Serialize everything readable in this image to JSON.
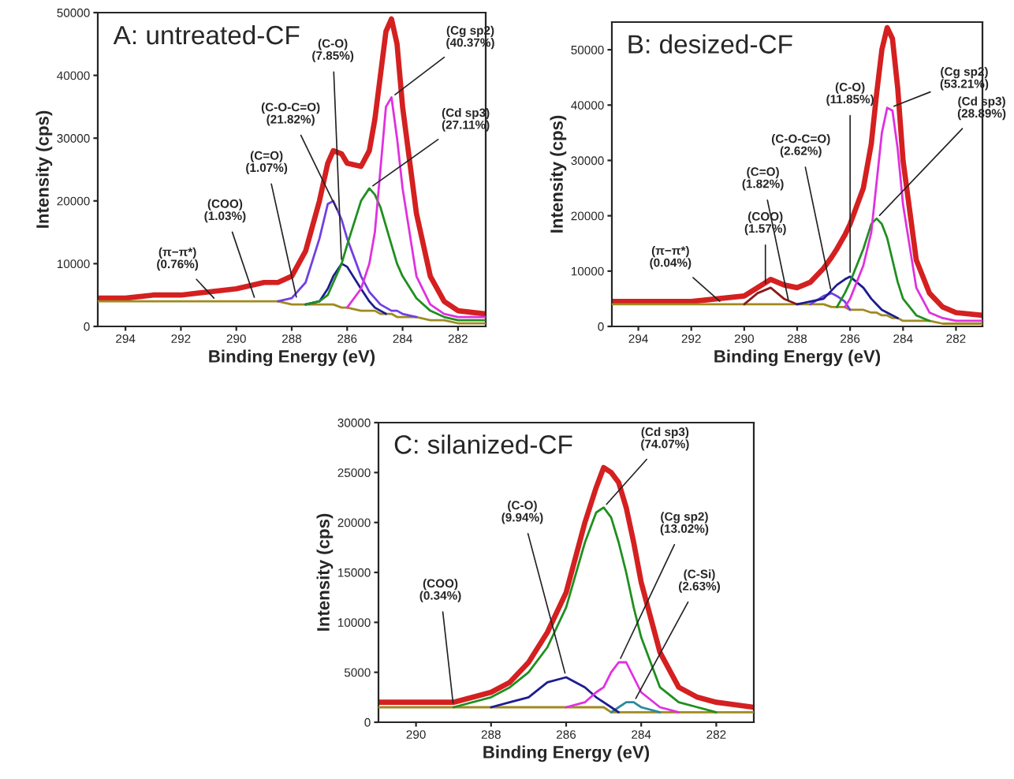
{
  "chart_data": [
    {
      "type": "line",
      "title": "A: untreated-CF",
      "xlabel": "Binding Energy (eV)",
      "ylabel": "Intensity (cps)",
      "x": [
        295,
        294,
        293,
        292,
        291,
        290,
        289.5,
        289,
        288.5,
        288,
        287.5,
        287,
        286.7,
        286.5,
        286.2,
        286,
        285.5,
        285.2,
        285,
        284.8,
        284.6,
        284.4,
        284.2,
        284,
        283.5,
        283,
        282.5,
        282,
        281
      ],
      "xlim": [
        295,
        281
      ],
      "xticks": [
        294,
        292,
        290,
        288,
        286,
        284,
        282
      ],
      "ylim": [
        0,
        50000
      ],
      "yticks": [
        0,
        10000,
        20000,
        30000,
        40000,
        50000
      ],
      "series": [
        {
          "color": "#a08a20",
          "values": [
            4000,
            4000,
            4000,
            4000,
            4000,
            4000,
            4000,
            4000,
            4000,
            3500,
            3500,
            3500,
            3500,
            3500,
            3000,
            3000,
            2500,
            2500,
            2500,
            2000,
            2000,
            2000,
            1500,
            1500,
            1500,
            1000,
            1000,
            500,
            500
          ]
        },
        {
          "color": "#7040e0",
          "values": [
            null,
            null,
            null,
            null,
            null,
            null,
            null,
            null,
            4000,
            4500,
            7000,
            14000,
            19500,
            20000,
            17000,
            14000,
            8000,
            5500,
            4500,
            3500,
            3000,
            2500,
            2500,
            2000,
            1500,
            null,
            null,
            null,
            null
          ]
        },
        {
          "color": "#1c1c90",
          "values": [
            null,
            null,
            null,
            null,
            null,
            null,
            null,
            null,
            null,
            null,
            3500,
            4000,
            6000,
            8000,
            10000,
            9500,
            6000,
            4000,
            3000,
            2500,
            2000,
            null,
            null,
            null,
            null,
            null,
            null,
            null,
            null
          ]
        },
        {
          "color": "#1f8f1f",
          "values": [
            null,
            null,
            null,
            null,
            null,
            null,
            null,
            null,
            null,
            null,
            3500,
            4000,
            5000,
            7000,
            10000,
            13000,
            20000,
            22000,
            21000,
            19000,
            16000,
            13000,
            10000,
            8000,
            4500,
            2500,
            1500,
            1000,
            1000
          ]
        },
        {
          "color": "#e030e0",
          "values": [
            null,
            null,
            null,
            null,
            null,
            null,
            null,
            null,
            null,
            null,
            null,
            null,
            null,
            null,
            null,
            3000,
            6000,
            10000,
            15000,
            25000,
            35000,
            36500,
            30000,
            22000,
            8000,
            3500,
            2000,
            1500,
            1500
          ]
        },
        {
          "color": "#d42020",
          "values": [
            4500,
            4500,
            5000,
            5000,
            5500,
            6000,
            6500,
            7000,
            7000,
            8000,
            12000,
            20000,
            26000,
            28000,
            27500,
            26000,
            25500,
            28000,
            33000,
            40000,
            47000,
            49000,
            45000,
            35000,
            18000,
            8000,
            4000,
            2500,
            2000
          ]
        }
      ],
      "annotations": [
        {
          "text": "(π−π*)\n(0.76%)",
          "x": 290.7,
          "y": 4000
        },
        {
          "text": "(COO)\n(1.03%)",
          "x": 289.3,
          "y": 4000
        },
        {
          "text": "(C=O)\n(1.07%)",
          "x": 287.8,
          "y": 4000
        },
        {
          "text": "(C-O-C=O)\n(21.82%)",
          "x": 286.3,
          "y": 18000
        },
        {
          "text": "(C-O)\n(7.85%)",
          "x": 286.2,
          "y": 10000
        },
        {
          "text": "(Cg sp2)\n(40.37%)",
          "x": 284.4,
          "y": 36500
        },
        {
          "text": "(Cd sp3)\n(27.11%)",
          "x": 285.2,
          "y": 22000
        }
      ]
    },
    {
      "type": "line",
      "title": "B: desized-CF",
      "xlabel": "Binding Energy (eV)",
      "ylabel": "Intensity (cps)",
      "x": [
        295,
        294,
        293,
        292,
        291,
        290,
        289.5,
        289,
        288.5,
        288,
        287.5,
        287,
        286.7,
        286.5,
        286.2,
        286,
        285.5,
        285.2,
        285,
        284.8,
        284.6,
        284.4,
        284.2,
        284,
        283.5,
        283,
        282.5,
        282,
        281
      ],
      "xlim": [
        295,
        281
      ],
      "xticks": [
        294,
        292,
        290,
        288,
        286,
        284,
        282
      ],
      "ylim": [
        0,
        55000
      ],
      "yticks": [
        0,
        10000,
        20000,
        30000,
        40000,
        50000
      ],
      "series": [
        {
          "color": "#a08a20",
          "values": [
            4000,
            4000,
            4000,
            4000,
            4000,
            4000,
            4000,
            4000,
            4000,
            4000,
            4000,
            4000,
            3500,
            3500,
            3500,
            3000,
            3000,
            2500,
            2500,
            2000,
            2000,
            1500,
            1500,
            1000,
            1000,
            1000,
            500,
            500,
            500
          ]
        },
        {
          "color": "#8b1a1a",
          "values": [
            null,
            null,
            null,
            null,
            null,
            4000,
            6000,
            7000,
            5000,
            4000,
            null,
            null,
            null,
            null,
            null,
            null,
            null,
            null,
            null,
            null,
            null,
            null,
            null,
            null,
            null,
            null,
            null,
            null,
            null
          ]
        },
        {
          "color": "#7040e0",
          "values": [
            null,
            null,
            null,
            null,
            null,
            null,
            null,
            null,
            null,
            null,
            4000,
            5500,
            6000,
            5500,
            4500,
            3000,
            null,
            null,
            null,
            null,
            null,
            null,
            null,
            null,
            null,
            null,
            null,
            null,
            null
          ]
        },
        {
          "color": "#1c1c90",
          "values": [
            null,
            null,
            null,
            null,
            null,
            null,
            null,
            null,
            null,
            4000,
            4500,
            5000,
            6500,
            7500,
            8500,
            9000,
            7000,
            5000,
            4000,
            3000,
            2500,
            2000,
            1500,
            null,
            null,
            null,
            null,
            null,
            null
          ]
        },
        {
          "color": "#1f8f1f",
          "values": [
            null,
            null,
            null,
            null,
            null,
            null,
            null,
            null,
            null,
            null,
            null,
            null,
            null,
            3500,
            6000,
            8000,
            14000,
            18500,
            19500,
            18500,
            16000,
            12000,
            8000,
            5000,
            2000,
            1000,
            null,
            null,
            null
          ]
        },
        {
          "color": "#e030e0",
          "values": [
            null,
            null,
            null,
            null,
            null,
            null,
            null,
            null,
            null,
            null,
            null,
            null,
            null,
            null,
            3500,
            5000,
            11000,
            17000,
            26000,
            35000,
            39500,
            39000,
            32000,
            22000,
            7000,
            2500,
            1500,
            1000,
            1000
          ]
        },
        {
          "color": "#d42020",
          "values": [
            4500,
            4500,
            4500,
            4500,
            5000,
            5500,
            7000,
            8500,
            7500,
            7000,
            8000,
            10500,
            12500,
            14000,
            16500,
            18500,
            25000,
            33000,
            42000,
            50000,
            54000,
            52000,
            43000,
            30000,
            12000,
            6000,
            3500,
            2500,
            2000
          ]
        }
      ],
      "annotations": [
        {
          "text": "(π−π*)\n(0.04%)",
          "x": 290.8,
          "y": 4000
        },
        {
          "text": "(COO)\n(1.57%)",
          "x": 289.2,
          "y": 7000
        },
        {
          "text": "(C=O)\n(1.82%)",
          "x": 288.3,
          "y": 4000
        },
        {
          "text": "(C-O-C=O)\n(2.62%)",
          "x": 286.7,
          "y": 6000
        },
        {
          "text": "(C-O)\n(11.85%)",
          "x": 286.0,
          "y": 9000
        },
        {
          "text": "(Cg sp2)\n(53.21%)",
          "x": 284.5,
          "y": 39500
        },
        {
          "text": "(Cd sp3)\n(28.89%)",
          "x": 285.0,
          "y": 19500
        }
      ]
    },
    {
      "type": "line",
      "title": "C: silanized-CF",
      "xlabel": "Binding Energy (eV)",
      "ylabel": "Intensity (cps)",
      "x": [
        291,
        290,
        289,
        288,
        287.5,
        287,
        286.5,
        286,
        285.5,
        285.2,
        285,
        284.8,
        284.6,
        284.4,
        284.2,
        284,
        283.5,
        283,
        282.5,
        282,
        281
      ],
      "xlim": [
        291,
        281
      ],
      "xticks": [
        290,
        288,
        286,
        284,
        282
      ],
      "ylim": [
        0,
        30000
      ],
      "yticks": [
        0,
        5000,
        10000,
        15000,
        20000,
        25000,
        30000
      ],
      "series": [
        {
          "color": "#a08a20",
          "values": [
            1500,
            1500,
            1500,
            1500,
            1500,
            1500,
            1500,
            1500,
            1500,
            1500,
            1500,
            1000,
            1000,
            1000,
            1000,
            1000,
            1000,
            1000,
            1000,
            1000,
            1000
          ]
        },
        {
          "color": "#2a8a9a",
          "values": [
            null,
            null,
            null,
            null,
            null,
            null,
            null,
            null,
            null,
            null,
            null,
            1000,
            1500,
            2000,
            2000,
            1500,
            1000,
            null,
            null,
            null,
            null
          ]
        },
        {
          "color": "#1c1c90",
          "values": [
            null,
            null,
            null,
            1500,
            2000,
            2500,
            4000,
            4500,
            3500,
            2500,
            2000,
            1500,
            1000,
            null,
            null,
            null,
            null,
            null,
            null,
            null,
            null
          ]
        },
        {
          "color": "#e030e0",
          "values": [
            null,
            null,
            null,
            null,
            null,
            null,
            null,
            1500,
            2000,
            3000,
            3500,
            5000,
            6000,
            6000,
            4500,
            3000,
            1500,
            1000,
            null,
            null,
            null
          ]
        },
        {
          "color": "#1f8f1f",
          "values": [
            null,
            null,
            1500,
            2500,
            3500,
            5000,
            7500,
            11500,
            18000,
            21000,
            21500,
            20500,
            18000,
            15000,
            11500,
            8500,
            3500,
            2000,
            1500,
            1000,
            null
          ]
        },
        {
          "color": "#d42020",
          "values": [
            2000,
            2000,
            2000,
            3000,
            4000,
            6000,
            9000,
            13000,
            20000,
            23500,
            25500,
            25000,
            24000,
            21500,
            18000,
            14000,
            7000,
            3500,
            2500,
            2000,
            1500
          ]
        }
      ],
      "annotations": [
        {
          "text": "(COO)\n(0.34%)",
          "x": 289,
          "y": 1500
        },
        {
          "text": "(C-O)\n(9.94%)",
          "x": 286,
          "y": 4500
        },
        {
          "text": "(Cd sp3)\n(74.07%)",
          "x": 285,
          "y": 21500
        },
        {
          "text": "(Cg sp2)\n(13.02%)",
          "x": 284.6,
          "y": 6000
        },
        {
          "text": "(C-Si)\n(2.63%)",
          "x": 284.2,
          "y": 2000
        }
      ]
    }
  ]
}
